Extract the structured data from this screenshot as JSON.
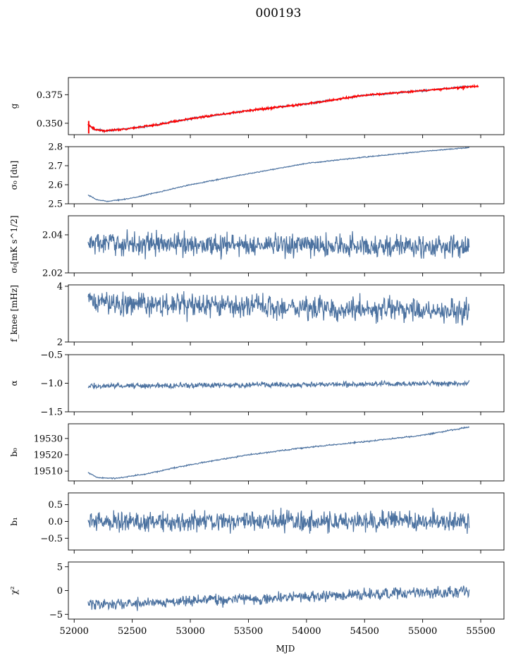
{
  "chart_data": {
    "type": "line",
    "title": "000193",
    "xlabel": "MJD",
    "xlim": [
      51950,
      55700
    ],
    "x_range": [
      52120,
      55400
    ],
    "xticks": [
      52000,
      52500,
      53000,
      53500,
      54000,
      54500,
      55000,
      55500
    ],
    "series_color": "#4c72a0",
    "overlay_color": "#ff0000",
    "panels": [
      {
        "ylabel": "g",
        "ylim": [
          0.34,
          0.39
        ],
        "yticks": [
          0.35,
          0.375
        ],
        "yticklabels": [
          "0.350",
          "0.375"
        ],
        "trend": [
          [
            52120,
            0.348
          ],
          [
            52180,
            0.3445
          ],
          [
            52250,
            0.3435
          ],
          [
            52400,
            0.3445
          ],
          [
            52700,
            0.3485
          ],
          [
            53000,
            0.354
          ],
          [
            53500,
            0.361
          ],
          [
            54000,
            0.367
          ],
          [
            54500,
            0.3745
          ],
          [
            55000,
            0.3785
          ],
          [
            55400,
            0.3825
          ]
        ],
        "noise": 0.0006,
        "overlay": {
          "name": "",
          "trend": [
            [
              52120,
              0.349
            ],
            [
              52180,
              0.3445
            ],
            [
              52250,
              0.3435
            ],
            [
              52400,
              0.3445
            ],
            [
              52700,
              0.3485
            ],
            [
              53000,
              0.354
            ],
            [
              53500,
              0.361
            ],
            [
              54000,
              0.367
            ],
            [
              54500,
              0.3745
            ],
            [
              55000,
              0.3785
            ],
            [
              55480,
              0.3825
            ]
          ],
          "noise": 0.0006
        }
      },
      {
        "ylabel": "σ₀ [du]",
        "ylim": [
          2.5,
          2.8
        ],
        "yticks": [
          2.5,
          2.6,
          2.7,
          2.8
        ],
        "yticklabels": [
          "2.5",
          "2.6",
          "2.7",
          "2.8"
        ],
        "trend": [
          [
            52120,
            2.545
          ],
          [
            52200,
            2.52
          ],
          [
            52300,
            2.513
          ],
          [
            52500,
            2.53
          ],
          [
            53000,
            2.6
          ],
          [
            53500,
            2.658
          ],
          [
            54000,
            2.712
          ],
          [
            54500,
            2.745
          ],
          [
            55000,
            2.775
          ],
          [
            55400,
            2.795
          ]
        ],
        "noise": 0.002
      },
      {
        "ylabel": "σ₀[mK s^1/2]",
        "ylim": [
          2.02,
          2.05
        ],
        "yticks": [
          2.02,
          2.04
        ],
        "yticklabels": [
          "2.02",
          "2.04"
        ],
        "trend": [
          [
            52120,
            2.0355
          ],
          [
            55400,
            2.0335
          ]
        ],
        "noise": 0.0045
      },
      {
        "ylabel": "f_knee [mHz]",
        "ylim": [
          2,
          4.05
        ],
        "yticks": [
          2,
          4
        ],
        "yticklabels": [
          "2",
          "4"
        ],
        "trend": [
          [
            52120,
            3.45
          ],
          [
            52600,
            3.35
          ],
          [
            55400,
            3.1
          ]
        ],
        "noise": 0.32
      },
      {
        "ylabel": "α",
        "ylim": [
          -1.5,
          -0.5
        ],
        "yticks": [
          -1.5,
          -1.0,
          -0.5
        ],
        "yticklabels": [
          "−1.5",
          "−1.0",
          "−0.5"
        ],
        "trend": [
          [
            52120,
            -1.05
          ],
          [
            55400,
            -1.0
          ]
        ],
        "noise": 0.035
      },
      {
        "ylabel": "b₀",
        "ylim": [
          19504,
          19539
        ],
        "yticks": [
          19510,
          19520,
          19530
        ],
        "yticklabels": [
          "19510",
          "19520",
          "19530"
        ],
        "trend": [
          [
            52120,
            19509
          ],
          [
            52200,
            19506
          ],
          [
            52350,
            19505.5
          ],
          [
            52600,
            19508
          ],
          [
            53000,
            19514
          ],
          [
            53500,
            19520
          ],
          [
            54000,
            19524.5
          ],
          [
            54500,
            19528
          ],
          [
            55000,
            19532
          ],
          [
            55400,
            19537
          ]
        ],
        "noise": 0.3
      },
      {
        "ylabel": "b₁",
        "ylim": [
          -0.85,
          0.85
        ],
        "yticks": [
          -0.5,
          0.0,
          0.5
        ],
        "yticklabels": [
          "−0.5",
          "0.0",
          "0.5"
        ],
        "trend": [
          [
            52120,
            0.0
          ],
          [
            55400,
            0.0
          ]
        ],
        "noise": 0.22
      },
      {
        "ylabel": "χ²",
        "ylim": [
          -6,
          6
        ],
        "yticks": [
          -5,
          0,
          5
        ],
        "yticklabels": [
          "−5",
          "0",
          "5"
        ],
        "trend": [
          [
            52120,
            -2.8
          ],
          [
            52500,
            -2.8
          ],
          [
            53000,
            -2.0
          ],
          [
            53500,
            -1.8
          ],
          [
            54000,
            -1.3
          ],
          [
            54500,
            -0.8
          ],
          [
            55000,
            -0.5
          ],
          [
            55400,
            -0.3
          ]
        ],
        "noise": 0.9
      }
    ]
  }
}
